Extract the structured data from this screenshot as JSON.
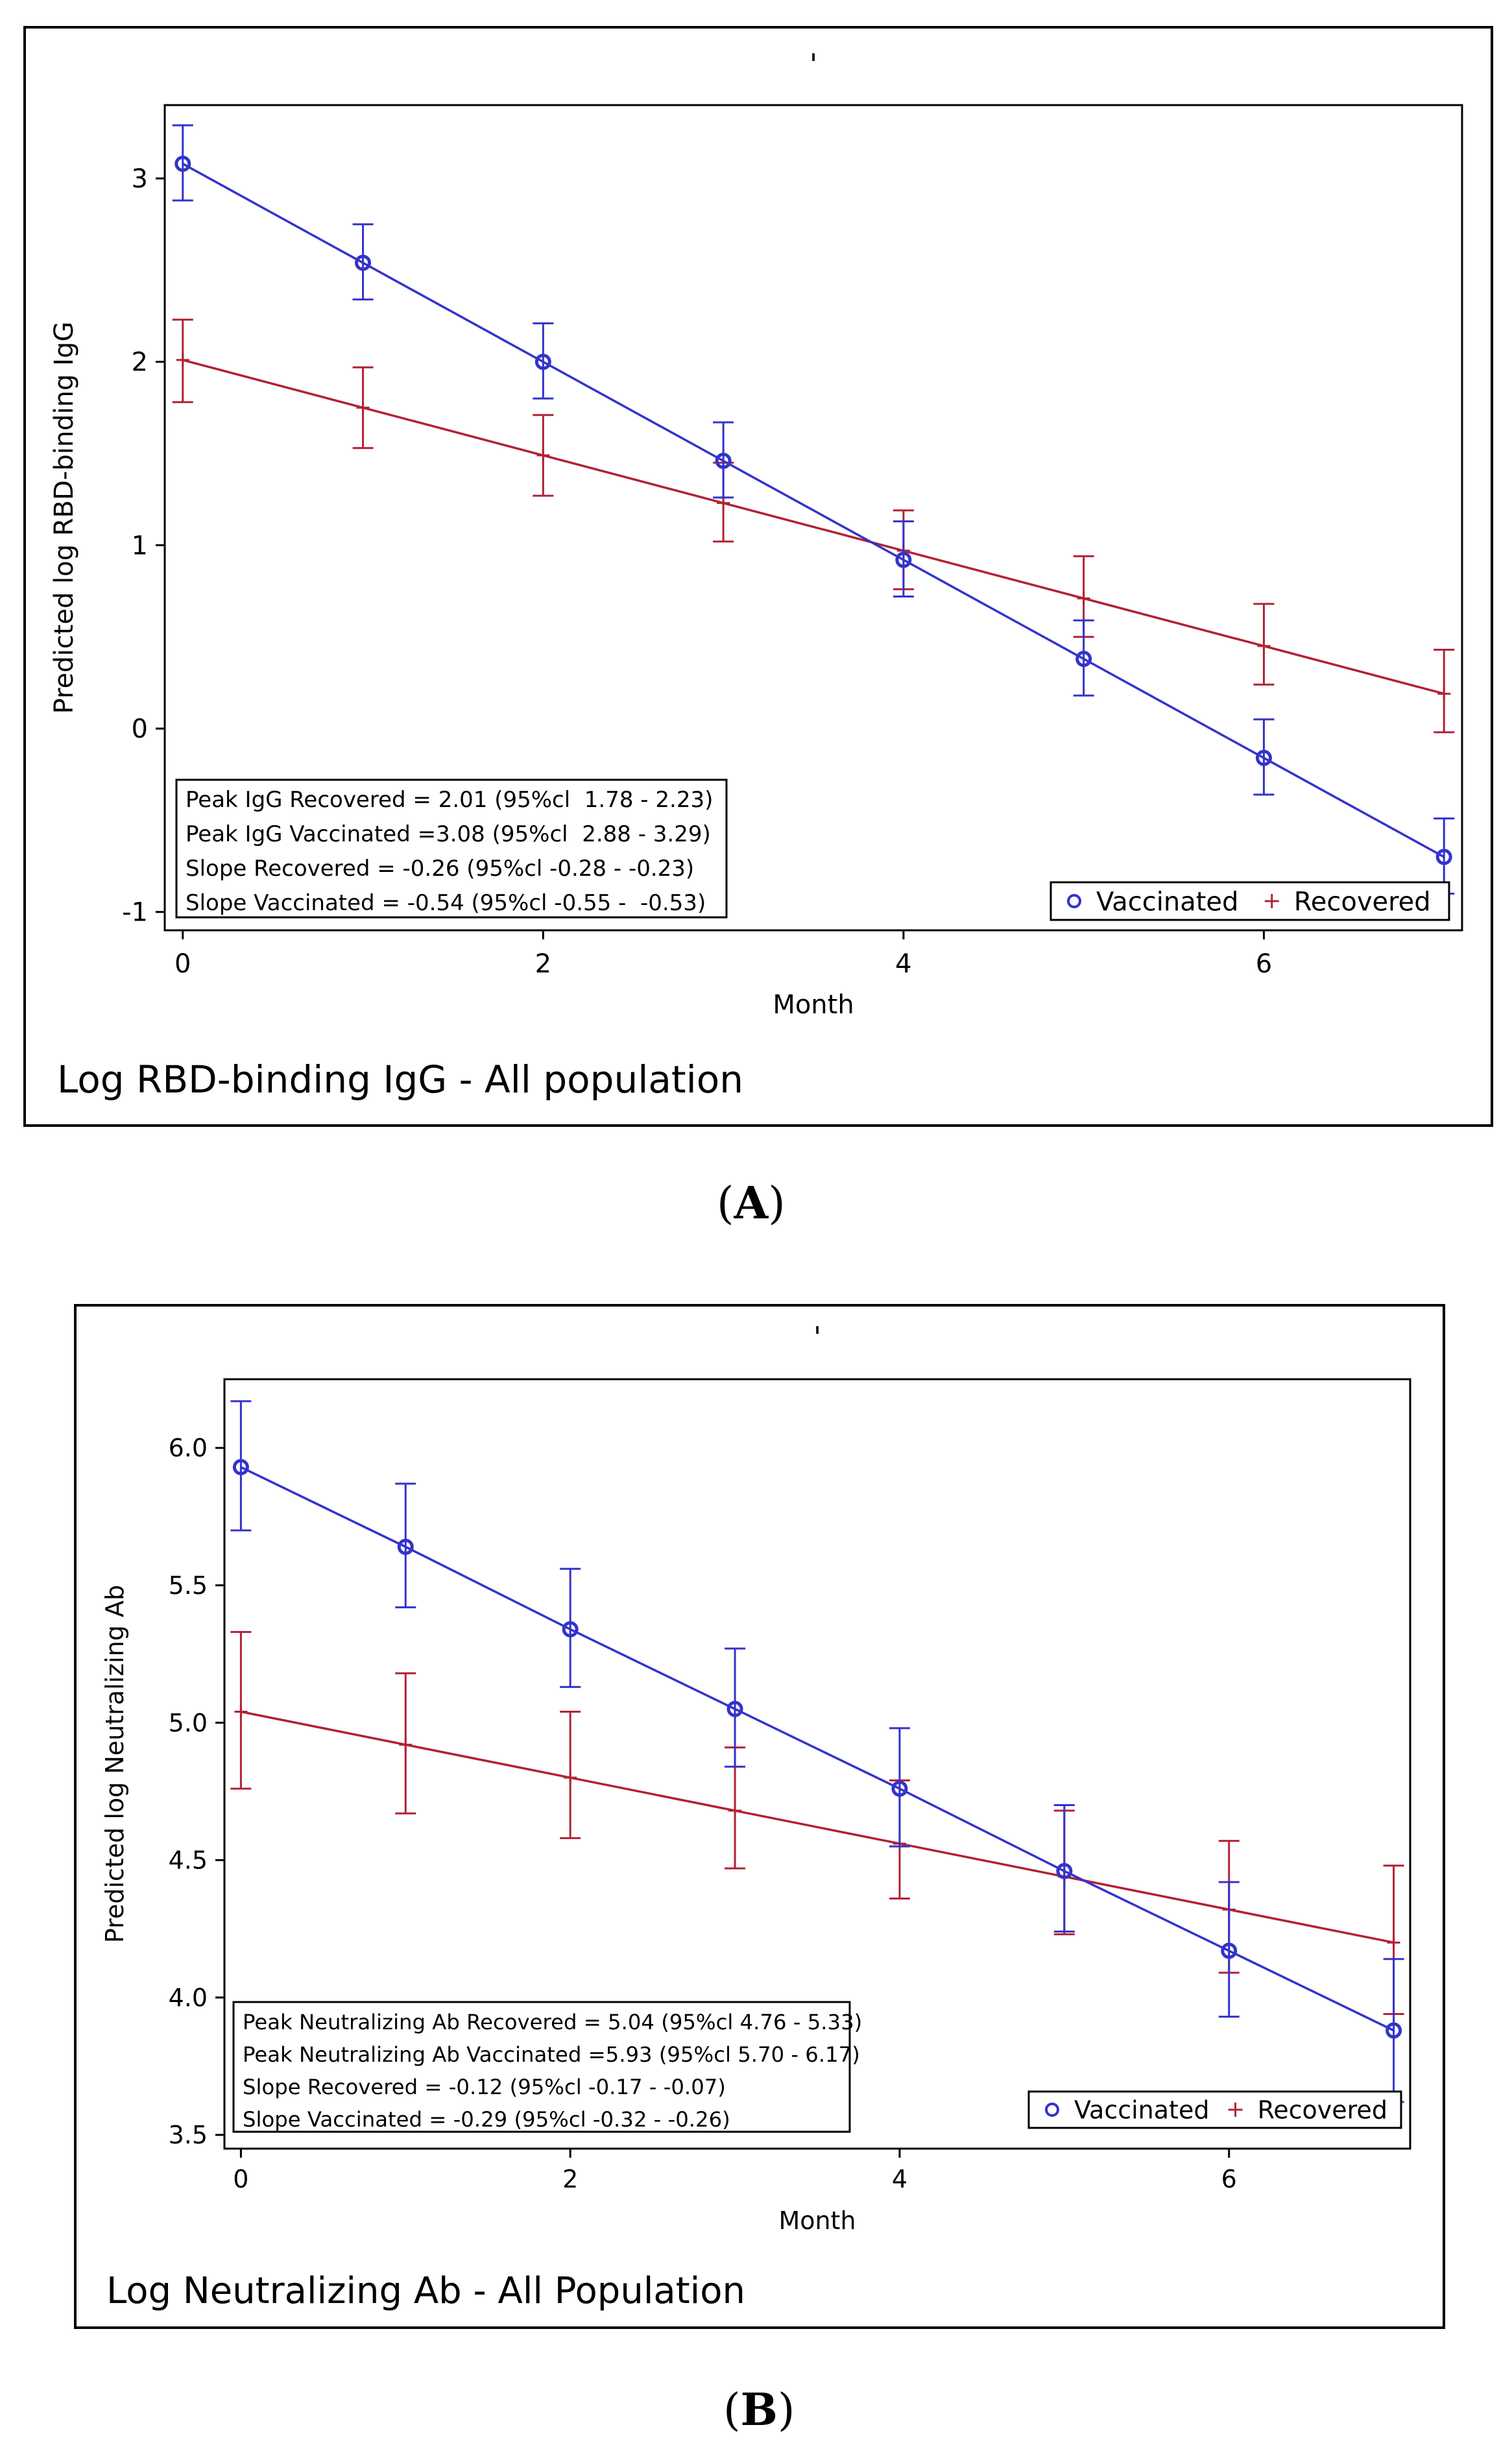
{
  "chart_data": [
    {
      "type": "line",
      "panel_label": "A",
      "top_mark": "'",
      "footer_title": "Log RBD-binding IgG - All population",
      "xlabel": "Month",
      "ylabel": "Predicted log RBD-binding IgG",
      "xlim": [
        -0.1,
        7.1
      ],
      "ylim": [
        -1.1,
        3.4
      ],
      "xticks": [
        0,
        2,
        4,
        6
      ],
      "yticks": [
        -1,
        0,
        1,
        2,
        3
      ],
      "ytick_labels": [
        "-1",
        "0",
        "1",
        "2",
        "3"
      ],
      "x": [
        0,
        1,
        2,
        3,
        4,
        5,
        6,
        7
      ],
      "series": [
        {
          "name": "Vaccinated",
          "color": "#3333cc",
          "marker": "circle",
          "values": [
            3.08,
            2.54,
            2.0,
            1.46,
            0.92,
            0.38,
            -0.16,
            -0.7
          ],
          "lower": [
            2.88,
            2.34,
            1.8,
            1.26,
            0.72,
            0.18,
            -0.36,
            -0.9
          ],
          "upper": [
            3.29,
            2.75,
            2.21,
            1.67,
            1.13,
            0.59,
            0.05,
            -0.49
          ]
        },
        {
          "name": "Recovered",
          "color": "#b22234",
          "marker": "plus",
          "values": [
            2.01,
            1.75,
            1.49,
            1.23,
            0.97,
            0.71,
            0.45,
            0.19
          ],
          "lower": [
            1.78,
            1.53,
            1.27,
            1.02,
            0.76,
            0.5,
            0.24,
            -0.02
          ],
          "upper": [
            2.23,
            1.97,
            1.71,
            1.45,
            1.19,
            0.94,
            0.68,
            0.43
          ]
        }
      ],
      "stats_box": [
        "Peak IgG Recovered = 2.01 (95%cl  1.78 - 2.23)",
        "Peak IgG Vaccinated =3.08 (95%cl  2.88 - 3.29)",
        "Slope Recovered = -0.26 (95%cl -0.28 - -0.23)",
        "Slope Vaccinated = -0.54 (95%cl -0.55 -  -0.53)"
      ],
      "legend": [
        "Vaccinated",
        "Recovered"
      ],
      "legend_position": "bottom-right"
    },
    {
      "type": "line",
      "panel_label": "B",
      "top_mark": "'",
      "footer_title": "Log Neutralizing Ab - All Population",
      "xlabel": "Month",
      "ylabel": "Predicted log Neutralizing Ab",
      "xlim": [
        -0.1,
        7.1
      ],
      "ylim": [
        3.45,
        6.25
      ],
      "xticks": [
        0,
        2,
        4,
        6
      ],
      "yticks": [
        3.5,
        4.0,
        4.5,
        5.0,
        5.5,
        6.0
      ],
      "ytick_labels": [
        "3.5",
        "4.0",
        "4.5",
        "5.0",
        "5.5",
        "6.0"
      ],
      "x": [
        0,
        1,
        2,
        3,
        4,
        5,
        6,
        7
      ],
      "series": [
        {
          "name": "Vaccinated",
          "color": "#3333cc",
          "marker": "circle",
          "values": [
            5.93,
            5.64,
            5.34,
            5.05,
            4.76,
            4.46,
            4.17,
            3.88
          ],
          "lower": [
            5.7,
            5.42,
            5.13,
            4.84,
            4.55,
            4.24,
            3.93,
            3.62
          ],
          "upper": [
            6.17,
            5.87,
            5.56,
            5.27,
            4.98,
            4.7,
            4.42,
            4.14
          ]
        },
        {
          "name": "Recovered",
          "color": "#b22234",
          "marker": "plus",
          "values": [
            5.04,
            4.92,
            4.8,
            4.68,
            4.56,
            4.44,
            4.32,
            4.2
          ],
          "lower": [
            4.76,
            4.67,
            4.58,
            4.47,
            4.36,
            4.23,
            4.09,
            3.94
          ],
          "upper": [
            5.33,
            5.18,
            5.04,
            4.91,
            4.79,
            4.68,
            4.57,
            4.48
          ]
        }
      ],
      "stats_box": [
        "Peak Neutralizing Ab Recovered = 5.04 (95%cl 4.76 - 5.33)",
        "Peak Neutralizing Ab Vaccinated =5.93 (95%cl 5.70 - 6.17)",
        "Slope Recovered = -0.12 (95%cl -0.17 - -0.07)",
        "Slope Vaccinated = -0.29 (95%cl -0.32 - -0.26)"
      ],
      "legend": [
        "Vaccinated",
        "Recovered"
      ],
      "legend_position": "bottom-right"
    }
  ]
}
